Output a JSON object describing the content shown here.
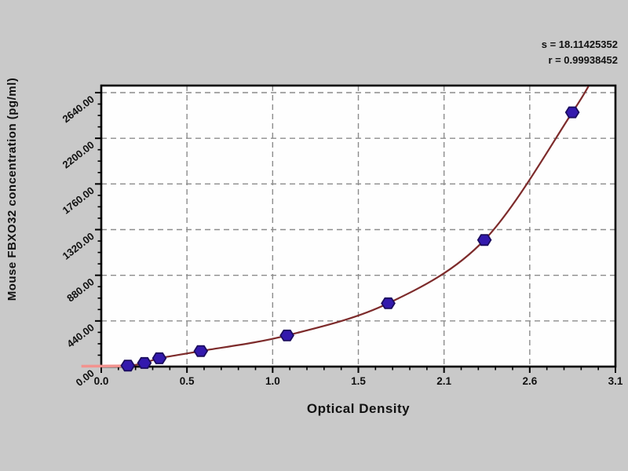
{
  "chart_data": {
    "type": "scatter",
    "title": "",
    "xlabel": "Optical Density",
    "ylabel": "Mouse FBXO32 concentration (pg/ml)",
    "annotations": [
      "s = 18.11425352",
      "r = 0.99938452"
    ],
    "x_ticks": [
      "0.0",
      "0.5",
      "1.0",
      "1.5",
      "2.1",
      "2.6",
      "3.1"
    ],
    "y_ticks": [
      "0.00",
      "440.00",
      "880.00",
      "1320.00",
      "1760.00",
      "2200.00",
      "2640.00"
    ],
    "xlim": [
      0,
      3.1
    ],
    "ylim": [
      0,
      2710
    ],
    "y_tick_value_max": 2640,
    "grid": true,
    "legend_position": "none",
    "series": [
      {
        "name": "standard-points",
        "type": "scatter",
        "x": [
          0.16,
          0.26,
          0.35,
          0.6,
          1.12,
          1.73,
          2.31,
          2.84
        ],
        "y": [
          10,
          35,
          80,
          150,
          300,
          610,
          1220,
          2450
        ]
      },
      {
        "name": "fitted-curve",
        "type": "line",
        "x": [
          -0.12,
          0.16,
          0.26,
          0.35,
          0.6,
          1.12,
          1.73,
          2.31,
          2.84,
          2.98
        ],
        "y": [
          0,
          10,
          35,
          80,
          150,
          300,
          610,
          1220,
          2450,
          2830
        ]
      }
    ],
    "colors": {
      "background": "#c9c9c9",
      "plot_background": "#fefefe",
      "grid": "#8c8c8c",
      "frame": "#000000",
      "curve": "#7d2b2b",
      "curve_start_segment": "#f2938f",
      "marker_fill": "#3319ad",
      "marker_stroke": "#1b0d5e",
      "text": "#111111"
    }
  }
}
